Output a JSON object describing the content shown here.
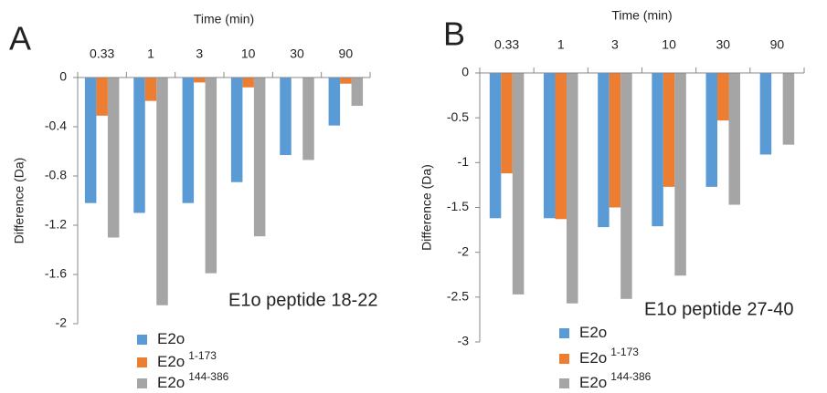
{
  "chart_data": [
    {
      "type": "bar",
      "panel": "A",
      "x_label": "Time (min)",
      "y_label": "Difference (Da)",
      "annotation": "E1o peptide 18-22",
      "categories": [
        "0.33",
        "1",
        "3",
        "10",
        "30",
        "90"
      ],
      "series": [
        {
          "name": "E2o",
          "color": "#5b9bd5",
          "values": [
            -1.02,
            -1.1,
            -1.02,
            -0.85,
            -0.63,
            -0.39
          ]
        },
        {
          "name": "E2o",
          "superscript": "1-173",
          "color": "#ed7d31",
          "values": [
            -0.31,
            -0.19,
            -0.04,
            -0.08,
            null,
            -0.05
          ]
        },
        {
          "name": "E2o",
          "superscript": "144-386",
          "color": "#a5a5a5",
          "values": [
            -1.3,
            -1.85,
            -1.59,
            -1.29,
            -0.67,
            -0.23
          ]
        }
      ],
      "ylim": [
        -2,
        0
      ],
      "yticks": [
        0,
        -0.4,
        -0.8,
        -1.2,
        -1.6,
        -2
      ]
    },
    {
      "type": "bar",
      "panel": "B",
      "x_label": "Time (min)",
      "y_label": "Difference (Da)",
      "annotation": "E1o peptide 27-40",
      "categories": [
        "0.33",
        "1",
        "3",
        "10",
        "30",
        "90"
      ],
      "series": [
        {
          "name": "E2o",
          "color": "#5b9bd5",
          "values": [
            -1.62,
            -1.62,
            -1.72,
            -1.71,
            -1.27,
            -0.91
          ]
        },
        {
          "name": "E2o",
          "superscript": "1-173",
          "color": "#ed7d31",
          "values": [
            -1.12,
            -1.63,
            -1.5,
            -1.27,
            -0.53,
            null
          ]
        },
        {
          "name": "E2o",
          "superscript": "144-386",
          "color": "#a5a5a5",
          "values": [
            -2.47,
            -2.57,
            -2.52,
            -2.26,
            -1.47,
            -0.8
          ]
        }
      ],
      "ylim": [
        -3,
        0
      ],
      "yticks": [
        0,
        -0.5,
        -1,
        -1.5,
        -2,
        -2.5,
        -3
      ]
    }
  ]
}
